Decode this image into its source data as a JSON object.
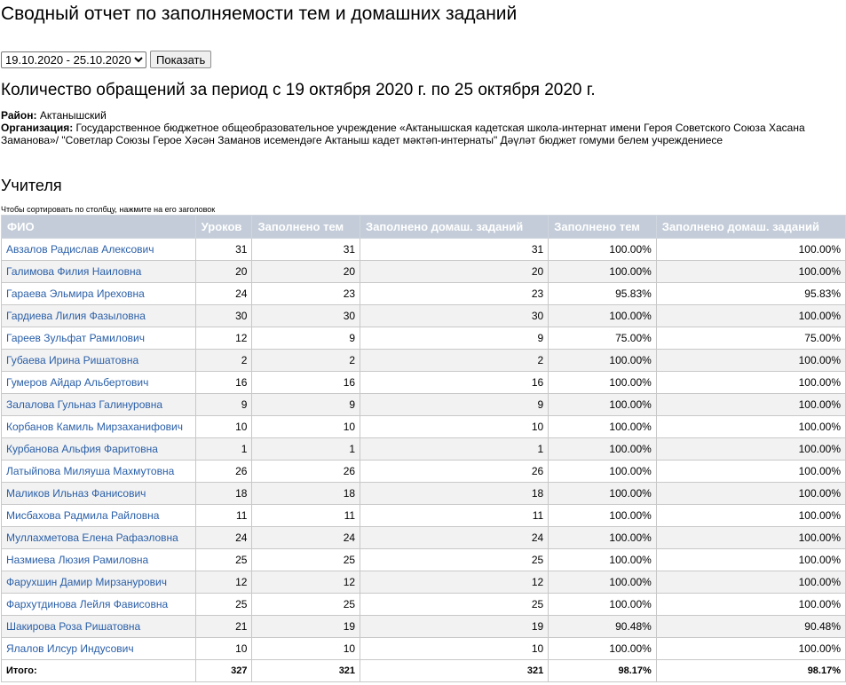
{
  "page": {
    "title": "Сводный отчет по заполняемости тем и домашних заданий",
    "period_select": "19.10.2020 - 25.10.2020",
    "show_button": "Показать",
    "subtitle": "Количество обращений за период с 19 октября 2020 г. по 25 октября 2020 г.",
    "district_label": "Район:",
    "district_value": "Актанышский",
    "org_label": "Организация:",
    "org_value": "Государственное бюджетное общеобразовательное учреждение «Актанышская кадетская школа-интернат имени Героя Советского Союза Хасана Заманова»/ \"Советлар Союзы Герое Хәсән Заманов исемендәге Актаныш кадет мәктәп-интернаты\" Дәүләт бюджет гомуми белем учреждениесе",
    "section_title": "Учителя",
    "sort_hint": "Чтобы сортировать по столбцу, нажмите на его заголовок"
  },
  "table": {
    "headers": [
      "ФИО",
      "Уроков",
      "Заполнено тем",
      "Заполнено домаш. заданий",
      "Заполнено тем",
      "Заполнено домаш. заданий"
    ],
    "rows": [
      [
        "Авзалов Радислав Алексович",
        "31",
        "31",
        "31",
        "100.00%",
        "100.00%"
      ],
      [
        "Галимова Филия Наиловна",
        "20",
        "20",
        "20",
        "100.00%",
        "100.00%"
      ],
      [
        "Гараева Эльмира Иреховна",
        "24",
        "23",
        "23",
        "95.83%",
        "95.83%"
      ],
      [
        "Гардиева Лилия Фазыловна",
        "30",
        "30",
        "30",
        "100.00%",
        "100.00%"
      ],
      [
        "Гареев Зульфат Рамилович",
        "12",
        "9",
        "9",
        "75.00%",
        "75.00%"
      ],
      [
        "Губаева Ирина Ришатовна",
        "2",
        "2",
        "2",
        "100.00%",
        "100.00%"
      ],
      [
        "Гумеров Айдар Альбертович",
        "16",
        "16",
        "16",
        "100.00%",
        "100.00%"
      ],
      [
        "Залалова Гульназ Галинуровна",
        "9",
        "9",
        "9",
        "100.00%",
        "100.00%"
      ],
      [
        "Корбанов Камиль Мирзаханифович",
        "10",
        "10",
        "10",
        "100.00%",
        "100.00%"
      ],
      [
        "Курбанова Альфия Фаритовна",
        "1",
        "1",
        "1",
        "100.00%",
        "100.00%"
      ],
      [
        "Латыйпова Миляуша Махмутовна",
        "26",
        "26",
        "26",
        "100.00%",
        "100.00%"
      ],
      [
        "Маликов Ильназ Фанисович",
        "18",
        "18",
        "18",
        "100.00%",
        "100.00%"
      ],
      [
        "Мисбахова Радмила Райловна",
        "11",
        "11",
        "11",
        "100.00%",
        "100.00%"
      ],
      [
        "Муллахметова Елена Рафаэловна",
        "24",
        "24",
        "24",
        "100.00%",
        "100.00%"
      ],
      [
        "Назмиева Люзия Рамиловна",
        "25",
        "25",
        "25",
        "100.00%",
        "100.00%"
      ],
      [
        "Фарухшин Дамир Мирзанурович",
        "12",
        "12",
        "12",
        "100.00%",
        "100.00%"
      ],
      [
        "Фархутдинова Лейля Фависовна",
        "25",
        "25",
        "25",
        "100.00%",
        "100.00%"
      ],
      [
        "Шакирова Роза Ришатовна",
        "21",
        "19",
        "19",
        "90.48%",
        "90.48%"
      ],
      [
        "Ялалов Илсур Индусович",
        "10",
        "10",
        "10",
        "100.00%",
        "100.00%"
      ]
    ],
    "total": [
      "Итого:",
      "327",
      "321",
      "321",
      "98.17%",
      "98.17%"
    ]
  },
  "colors": {
    "header_bg": "#c3ccd8",
    "link": "#2a5fa8",
    "alt_row": "#f2f2f2"
  }
}
